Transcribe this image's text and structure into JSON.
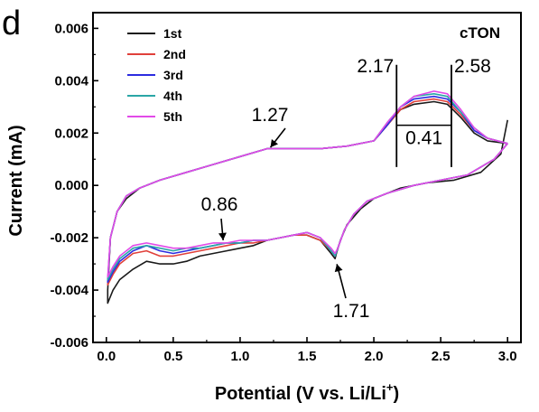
{
  "panel_label": "d",
  "colors": {
    "series_1st": "#1a1a1a",
    "series_2nd": "#e0403a",
    "series_3rd": "#2c2ce0",
    "series_4th": "#2aa6a6",
    "series_5th": "#e24ae8",
    "axes": "#000000"
  },
  "chart_data": {
    "type": "line",
    "title": "cTON",
    "xlabel_main": "Potential (V vs. Li/Li",
    "xlabel_sup": "+",
    "xlabel_tail": ")",
    "ylabel": "Current (mA)",
    "xlim": [
      -0.1,
      3.1
    ],
    "ylim": [
      -0.006,
      0.0066
    ],
    "xticks": [
      0.0,
      0.5,
      1.0,
      1.5,
      2.0,
      2.5,
      3.0
    ],
    "xtick_labels": [
      "0.0",
      "0.5",
      "1.0",
      "1.5",
      "2.0",
      "2.5",
      "3.0"
    ],
    "yticks": [
      -0.006,
      -0.004,
      -0.002,
      0.0,
      0.002,
      0.004,
      0.006
    ],
    "ytick_labels": [
      "-0.006",
      "-0.004",
      "-0.002",
      "0.000",
      "0.002",
      "0.004",
      "0.006"
    ],
    "legend_position": "top-left",
    "grid": false,
    "annotations": [
      {
        "text": "1.27",
        "target": [
          1.22,
          0.00135
        ]
      },
      {
        "text": "0.86",
        "target": [
          0.88,
          -0.0022
        ]
      },
      {
        "text": "1.71",
        "target": [
          1.71,
          -0.0028
        ]
      },
      {
        "text": "2.17",
        "target": [
          2.17,
          0.0044
        ]
      },
      {
        "text": "2.58",
        "target": [
          2.58,
          0.0044
        ]
      },
      {
        "text": "0.41",
        "target": [
          2.38,
          0.0022
        ]
      }
    ],
    "series": [
      {
        "name": "1st",
        "color": "#1a1a1a",
        "cathodic": [
          [
            3.0,
            0.0025
          ],
          [
            2.95,
            0.0012
          ],
          [
            2.8,
            0.0005
          ],
          [
            2.6,
            0.0002
          ],
          [
            2.4,
            0.0001
          ],
          [
            2.2,
            -0.0001
          ],
          [
            2.0,
            -0.0005
          ],
          [
            1.9,
            -0.0009
          ],
          [
            1.8,
            -0.0015
          ],
          [
            1.75,
            -0.0021
          ],
          [
            1.72,
            -0.0026
          ],
          [
            1.71,
            -0.0028
          ],
          [
            1.68,
            -0.0026
          ],
          [
            1.6,
            -0.0021
          ],
          [
            1.5,
            -0.0019
          ],
          [
            1.4,
            -0.0019
          ],
          [
            1.3,
            -0.002
          ],
          [
            1.2,
            -0.0021
          ],
          [
            1.1,
            -0.0023
          ],
          [
            1.0,
            -0.0024
          ],
          [
            0.9,
            -0.0025
          ],
          [
            0.8,
            -0.0026
          ],
          [
            0.7,
            -0.0027
          ],
          [
            0.6,
            -0.0029
          ],
          [
            0.5,
            -0.003
          ],
          [
            0.4,
            -0.003
          ],
          [
            0.3,
            -0.0029
          ],
          [
            0.2,
            -0.0032
          ],
          [
            0.1,
            -0.0036
          ],
          [
            0.05,
            -0.004
          ],
          [
            0.01,
            -0.0045
          ]
        ],
        "anodic": [
          [
            0.01,
            -0.004
          ],
          [
            0.03,
            -0.002
          ],
          [
            0.08,
            -0.001
          ],
          [
            0.15,
            -0.0005
          ],
          [
            0.25,
            -0.0001
          ],
          [
            0.4,
            0.0002
          ],
          [
            0.6,
            0.0005
          ],
          [
            0.8,
            0.0008
          ],
          [
            1.0,
            0.0011
          ],
          [
            1.2,
            0.0014
          ],
          [
            1.4,
            0.0014
          ],
          [
            1.6,
            0.0014
          ],
          [
            1.8,
            0.0015
          ],
          [
            2.0,
            0.0017
          ],
          [
            2.1,
            0.0023
          ],
          [
            2.2,
            0.0029
          ],
          [
            2.3,
            0.0031
          ],
          [
            2.45,
            0.0032
          ],
          [
            2.55,
            0.0031
          ],
          [
            2.65,
            0.0026
          ],
          [
            2.75,
            0.002
          ],
          [
            2.85,
            0.0017
          ],
          [
            3.0,
            0.0016
          ]
        ]
      },
      {
        "name": "2nd",
        "color": "#e0403a",
        "cathodic": [
          [
            3.0,
            0.0016
          ],
          [
            2.9,
            0.001
          ],
          [
            2.7,
            0.0004
          ],
          [
            2.5,
            0.0002
          ],
          [
            2.3,
            0.0
          ],
          [
            2.1,
            -0.0003
          ],
          [
            1.95,
            -0.0006
          ],
          [
            1.85,
            -0.0011
          ],
          [
            1.78,
            -0.0017
          ],
          [
            1.73,
            -0.0024
          ],
          [
            1.71,
            -0.0027
          ],
          [
            1.68,
            -0.0025
          ],
          [
            1.6,
            -0.0021
          ],
          [
            1.5,
            -0.0019
          ],
          [
            1.4,
            -0.0019
          ],
          [
            1.3,
            -0.002
          ],
          [
            1.2,
            -0.0021
          ],
          [
            1.1,
            -0.0022
          ],
          [
            1.0,
            -0.0022
          ],
          [
            0.9,
            -0.0023
          ],
          [
            0.8,
            -0.0024
          ],
          [
            0.7,
            -0.0025
          ],
          [
            0.6,
            -0.0026
          ],
          [
            0.5,
            -0.0027
          ],
          [
            0.4,
            -0.0027
          ],
          [
            0.3,
            -0.0025
          ],
          [
            0.2,
            -0.0026
          ],
          [
            0.1,
            -0.003
          ],
          [
            0.05,
            -0.0034
          ],
          [
            0.01,
            -0.0038
          ]
        ],
        "anodic": [
          [
            0.01,
            -0.0038
          ],
          [
            0.03,
            -0.002
          ],
          [
            0.08,
            -0.001
          ],
          [
            0.15,
            -0.0004
          ],
          [
            0.25,
            -0.0001
          ],
          [
            0.4,
            0.0002
          ],
          [
            0.6,
            0.0005
          ],
          [
            0.8,
            0.0008
          ],
          [
            1.0,
            0.0011
          ],
          [
            1.2,
            0.0014
          ],
          [
            1.4,
            0.0014
          ],
          [
            1.6,
            0.0014
          ],
          [
            1.8,
            0.0015
          ],
          [
            2.0,
            0.0017
          ],
          [
            2.1,
            0.0023
          ],
          [
            2.2,
            0.0029
          ],
          [
            2.3,
            0.0032
          ],
          [
            2.45,
            0.0033
          ],
          [
            2.55,
            0.0032
          ],
          [
            2.65,
            0.0027
          ],
          [
            2.75,
            0.0021
          ],
          [
            2.85,
            0.0018
          ],
          [
            3.0,
            0.0016
          ]
        ]
      },
      {
        "name": "3rd",
        "color": "#2c2ce0",
        "cathodic": [
          [
            3.0,
            0.0016
          ],
          [
            2.9,
            0.001
          ],
          [
            2.7,
            0.0004
          ],
          [
            2.5,
            0.0002
          ],
          [
            2.3,
            0.0
          ],
          [
            2.1,
            -0.0003
          ],
          [
            1.95,
            -0.0006
          ],
          [
            1.85,
            -0.0011
          ],
          [
            1.78,
            -0.0017
          ],
          [
            1.73,
            -0.0024
          ],
          [
            1.71,
            -0.0027
          ],
          [
            1.68,
            -0.0025
          ],
          [
            1.6,
            -0.002
          ],
          [
            1.5,
            -0.0018
          ],
          [
            1.4,
            -0.0019
          ],
          [
            1.3,
            -0.002
          ],
          [
            1.2,
            -0.0021
          ],
          [
            1.1,
            -0.0021
          ],
          [
            1.0,
            -0.0022
          ],
          [
            0.9,
            -0.0022
          ],
          [
            0.8,
            -0.0023
          ],
          [
            0.7,
            -0.0024
          ],
          [
            0.6,
            -0.0025
          ],
          [
            0.5,
            -0.0026
          ],
          [
            0.4,
            -0.0025
          ],
          [
            0.3,
            -0.0023
          ],
          [
            0.2,
            -0.0025
          ],
          [
            0.1,
            -0.0029
          ],
          [
            0.05,
            -0.0033
          ],
          [
            0.01,
            -0.0037
          ]
        ],
        "anodic": [
          [
            0.01,
            -0.0037
          ],
          [
            0.03,
            -0.002
          ],
          [
            0.08,
            -0.001
          ],
          [
            0.15,
            -0.0004
          ],
          [
            0.25,
            -0.0001
          ],
          [
            0.4,
            0.0002
          ],
          [
            0.6,
            0.0005
          ],
          [
            0.8,
            0.0008
          ],
          [
            1.0,
            0.0011
          ],
          [
            1.2,
            0.0014
          ],
          [
            1.4,
            0.0014
          ],
          [
            1.6,
            0.0014
          ],
          [
            1.8,
            0.0015
          ],
          [
            2.0,
            0.0017
          ],
          [
            2.1,
            0.0023
          ],
          [
            2.2,
            0.003
          ],
          [
            2.3,
            0.0033
          ],
          [
            2.45,
            0.0034
          ],
          [
            2.55,
            0.0033
          ],
          [
            2.65,
            0.0028
          ],
          [
            2.75,
            0.0021
          ],
          [
            2.85,
            0.0018
          ],
          [
            3.0,
            0.0016
          ]
        ]
      },
      {
        "name": "4th",
        "color": "#2aa6a6",
        "cathodic": [
          [
            3.0,
            0.0016
          ],
          [
            2.9,
            0.001
          ],
          [
            2.7,
            0.0004
          ],
          [
            2.5,
            0.0002
          ],
          [
            2.3,
            0.0
          ],
          [
            2.1,
            -0.0003
          ],
          [
            1.95,
            -0.0006
          ],
          [
            1.85,
            -0.0011
          ],
          [
            1.78,
            -0.0017
          ],
          [
            1.73,
            -0.0024
          ],
          [
            1.71,
            -0.0027
          ],
          [
            1.68,
            -0.0025
          ],
          [
            1.6,
            -0.002
          ],
          [
            1.5,
            -0.0018
          ],
          [
            1.4,
            -0.0019
          ],
          [
            1.3,
            -0.002
          ],
          [
            1.2,
            -0.0021
          ],
          [
            1.1,
            -0.0021
          ],
          [
            1.0,
            -0.0022
          ],
          [
            0.9,
            -0.0022
          ],
          [
            0.8,
            -0.0023
          ],
          [
            0.7,
            -0.0024
          ],
          [
            0.6,
            -0.0024
          ],
          [
            0.5,
            -0.0025
          ],
          [
            0.4,
            -0.0024
          ],
          [
            0.3,
            -0.0023
          ],
          [
            0.2,
            -0.0024
          ],
          [
            0.1,
            -0.0028
          ],
          [
            0.05,
            -0.0032
          ],
          [
            0.01,
            -0.0036
          ]
        ],
        "anodic": [
          [
            0.01,
            -0.0036
          ],
          [
            0.03,
            -0.002
          ],
          [
            0.08,
            -0.001
          ],
          [
            0.15,
            -0.0004
          ],
          [
            0.25,
            -0.0001
          ],
          [
            0.4,
            0.0002
          ],
          [
            0.6,
            0.0005
          ],
          [
            0.8,
            0.0008
          ],
          [
            1.0,
            0.0011
          ],
          [
            1.2,
            0.0014
          ],
          [
            1.4,
            0.0014
          ],
          [
            1.6,
            0.0014
          ],
          [
            1.8,
            0.0015
          ],
          [
            2.0,
            0.0017
          ],
          [
            2.1,
            0.0024
          ],
          [
            2.2,
            0.003
          ],
          [
            2.3,
            0.0034
          ],
          [
            2.45,
            0.0035
          ],
          [
            2.55,
            0.0034
          ],
          [
            2.65,
            0.0028
          ],
          [
            2.75,
            0.0022
          ],
          [
            2.85,
            0.0018
          ],
          [
            3.0,
            0.0016
          ]
        ]
      },
      {
        "name": "5th",
        "color": "#e24ae8",
        "cathodic": [
          [
            3.0,
            0.0016
          ],
          [
            2.9,
            0.001
          ],
          [
            2.7,
            0.0004
          ],
          [
            2.5,
            0.0002
          ],
          [
            2.3,
            0.0
          ],
          [
            2.1,
            -0.0003
          ],
          [
            1.95,
            -0.0006
          ],
          [
            1.85,
            -0.0011
          ],
          [
            1.78,
            -0.0017
          ],
          [
            1.73,
            -0.0024
          ],
          [
            1.71,
            -0.0026
          ],
          [
            1.68,
            -0.0024
          ],
          [
            1.6,
            -0.002
          ],
          [
            1.5,
            -0.0018
          ],
          [
            1.4,
            -0.0019
          ],
          [
            1.3,
            -0.002
          ],
          [
            1.2,
            -0.0021
          ],
          [
            1.1,
            -0.0021
          ],
          [
            1.0,
            -0.0021
          ],
          [
            0.9,
            -0.0022
          ],
          [
            0.8,
            -0.0022
          ],
          [
            0.7,
            -0.0023
          ],
          [
            0.6,
            -0.0024
          ],
          [
            0.5,
            -0.0024
          ],
          [
            0.4,
            -0.0023
          ],
          [
            0.3,
            -0.0022
          ],
          [
            0.2,
            -0.0023
          ],
          [
            0.1,
            -0.0027
          ],
          [
            0.05,
            -0.0031
          ],
          [
            0.01,
            -0.0035
          ]
        ],
        "anodic": [
          [
            0.01,
            -0.0035
          ],
          [
            0.03,
            -0.002
          ],
          [
            0.08,
            -0.001
          ],
          [
            0.15,
            -0.0004
          ],
          [
            0.25,
            -0.0001
          ],
          [
            0.4,
            0.0002
          ],
          [
            0.6,
            0.0005
          ],
          [
            0.8,
            0.0008
          ],
          [
            1.0,
            0.0011
          ],
          [
            1.2,
            0.0014
          ],
          [
            1.4,
            0.0014
          ],
          [
            1.6,
            0.0014
          ],
          [
            1.8,
            0.0015
          ],
          [
            2.0,
            0.0017
          ],
          [
            2.1,
            0.0024
          ],
          [
            2.2,
            0.003
          ],
          [
            2.3,
            0.0034
          ],
          [
            2.45,
            0.0036
          ],
          [
            2.55,
            0.0035
          ],
          [
            2.65,
            0.0029
          ],
          [
            2.75,
            0.0022
          ],
          [
            2.85,
            0.0018
          ],
          [
            3.0,
            0.0016
          ]
        ]
      }
    ]
  }
}
